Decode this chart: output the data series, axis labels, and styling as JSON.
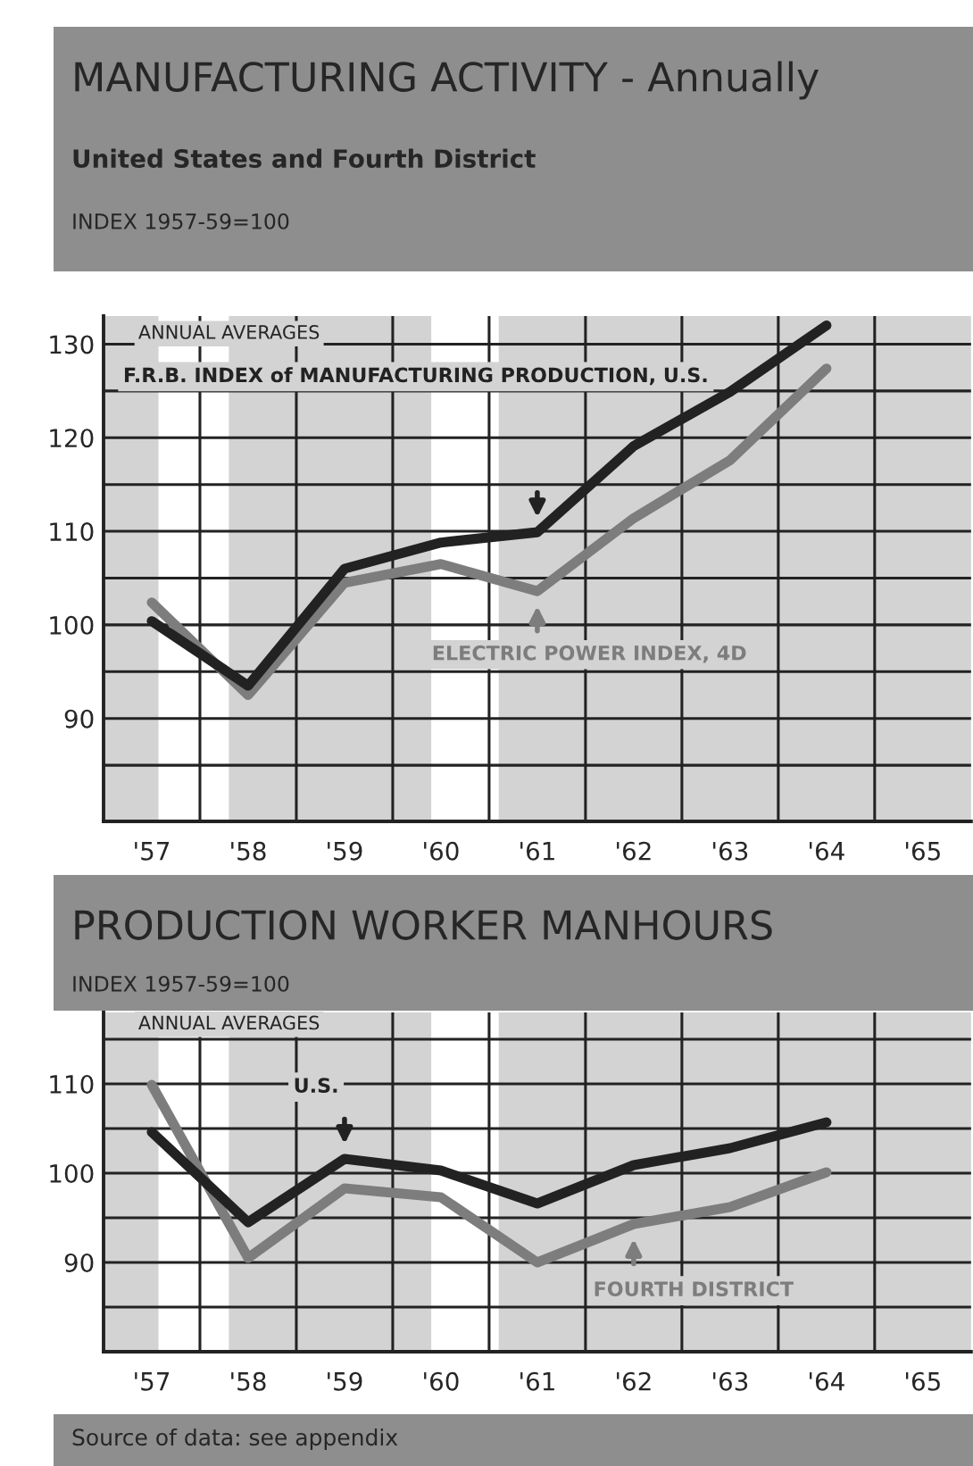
{
  "chart_data": [
    {
      "type": "line",
      "title": "MANUFACTURING ACTIVITY - Annually",
      "subtitle": "United States and Fourth District",
      "ylabel": "INDEX 1957-59=100",
      "annotations": [
        "ANNUAL AVERAGES"
      ],
      "x": [
        1957,
        1958,
        1959,
        1960,
        1961,
        1962,
        1963,
        1964
      ],
      "series": [
        {
          "name": "F.R.B. INDEX of MANUFACTURING PRODUCTION, U.S.",
          "color": "#222222",
          "values": [
            100.4,
            93.5,
            106,
            108.8,
            109.9,
            119.1,
            124.9,
            132
          ]
        },
        {
          "name": "ELECTRIC POWER INDEX, 4D",
          "color": "#7d7d7d",
          "values": [
            102.4,
            92.5,
            104.5,
            106.5,
            103.6,
            111.4,
            117.6,
            127.4
          ]
        }
      ],
      "xlim": [
        1956.5,
        1965.5
      ],
      "xticks": [
        {
          "value": 1957,
          "label": "'57"
        },
        {
          "value": 1958,
          "label": "'58"
        },
        {
          "value": 1959,
          "label": "'59"
        },
        {
          "value": 1960,
          "label": "'60"
        },
        {
          "value": 1961,
          "label": "'61"
        },
        {
          "value": 1962,
          "label": "'62"
        },
        {
          "value": 1963,
          "label": "'63"
        },
        {
          "value": 1964,
          "label": "'64"
        },
        {
          "value": 1965,
          "label": "'65"
        },
        {
          "value": 1957.5,
          "label": null
        },
        {
          "value": 1958.5,
          "label": null
        },
        {
          "value": 1959.5,
          "label": null
        },
        {
          "value": 1960.5,
          "label": null
        },
        {
          "value": 1961.5,
          "label": null
        },
        {
          "value": 1962.5,
          "label": null
        },
        {
          "value": 1963.5,
          "label": null
        },
        {
          "value": 1964.5,
          "label": null
        }
      ],
      "ylim": [
        79,
        133
      ],
      "yticks": [
        {
          "value": 85,
          "label": null
        },
        90,
        {
          "value": 95,
          "label": null
        },
        100,
        {
          "value": 105,
          "label": null
        },
        110,
        {
          "value": 115,
          "label": null
        },
        120,
        {
          "value": 125,
          "label": null
        },
        130
      ],
      "bands": [
        {
          "axis": "x",
          "from": 1957.07,
          "to": 1957.8,
          "color": "#ffffff"
        },
        {
          "axis": "x",
          "from": 1959.9,
          "to": 1960.6,
          "color": "#ffffff"
        }
      ],
      "grid": true,
      "legend": "right",
      "marker": "none",
      "line_style": "solid"
    },
    {
      "type": "line",
      "title": "PRODUCTION WORKER MANHOURS",
      "ylabel": "INDEX 1957-59=100",
      "annotations": [
        "ANNUAL AVERAGES",
        "Source of data: see appendix"
      ],
      "x": [
        1957,
        1958,
        1959,
        1960,
        1961,
        1962,
        1963,
        1964
      ],
      "series": [
        {
          "name": "U.S.",
          "color": "#222222",
          "values": [
            104.6,
            94.5,
            101.6,
            100.3,
            96.6,
            100.9,
            102.8,
            105.7
          ]
        },
        {
          "name": "FOURTH DISTRICT",
          "color": "#7d7d7d",
          "values": [
            109.9,
            90.5,
            98.3,
            97.3,
            90,
            94.3,
            96.2,
            100.1
          ]
        }
      ],
      "xlim": [
        1956.5,
        1965.5
      ],
      "xticks": [
        {
          "value": 1957,
          "label": "'57"
        },
        {
          "value": 1958,
          "label": "'58"
        },
        {
          "value": 1959,
          "label": "'59"
        },
        {
          "value": 1960,
          "label": "'60"
        },
        {
          "value": 1961,
          "label": "'61"
        },
        {
          "value": 1962,
          "label": "'62"
        },
        {
          "value": 1963,
          "label": "'63"
        },
        {
          "value": 1964,
          "label": "'64"
        },
        {
          "value": 1965,
          "label": "'65"
        },
        {
          "value": 1957.5,
          "label": null
        },
        {
          "value": 1958.5,
          "label": null
        },
        {
          "value": 1959.5,
          "label": null
        },
        {
          "value": 1960.5,
          "label": null
        },
        {
          "value": 1961.5,
          "label": null
        },
        {
          "value": 1962.5,
          "label": null
        },
        {
          "value": 1963.5,
          "label": null
        },
        {
          "value": 1964.5,
          "label": null
        }
      ],
      "ylim": [
        80,
        118
      ],
      "yticks": [
        {
          "value": 85,
          "label": null
        },
        90,
        {
          "value": 95,
          "label": null
        },
        100,
        {
          "value": 105,
          "label": null
        },
        110,
        {
          "value": 115,
          "label": null
        }
      ],
      "bands": [
        {
          "axis": "x",
          "from": 1957.07,
          "to": 1957.8,
          "color": "#ffffff"
        },
        {
          "axis": "x",
          "from": 1959.9,
          "to": 1960.6,
          "color": "#ffffff"
        }
      ],
      "grid": true,
      "legend": "bottom right",
      "marker": "none",
      "line_style": "solid"
    }
  ]
}
